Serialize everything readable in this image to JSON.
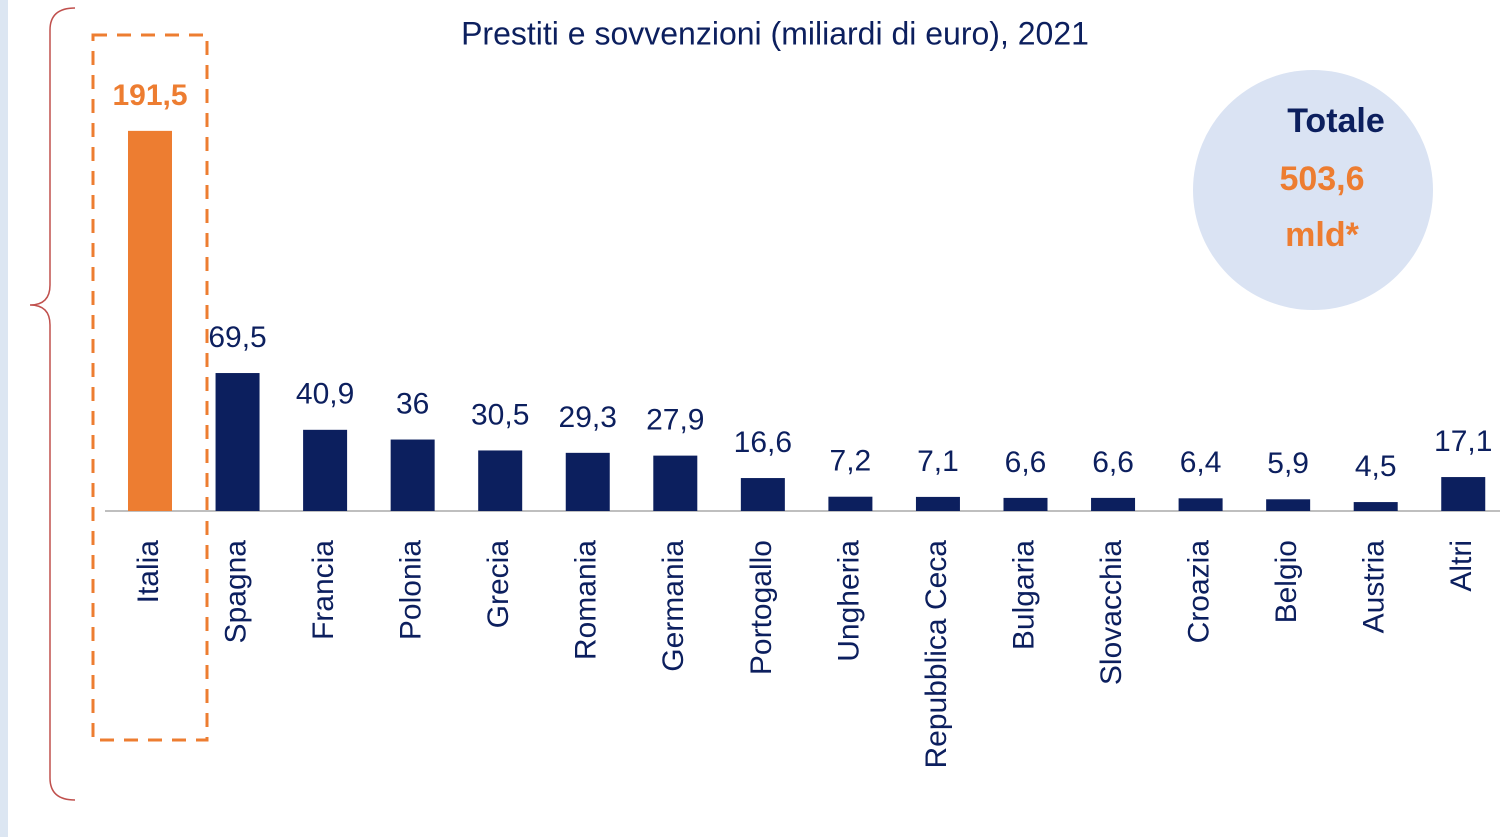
{
  "chart_data": {
    "type": "bar",
    "title": "Prestiti e sovvenzioni (miliardi di euro), 2021",
    "categories": [
      "Italia",
      "Spagna",
      "Francia",
      "Polonia",
      "Grecia",
      "Romania",
      "Germania",
      "Portogallo",
      "Ungheria",
      "Repubblica Ceca",
      "Bulgaria",
      "Slovacchia",
      "Croazia",
      "Belgio",
      "Austria",
      "Altri"
    ],
    "values": [
      191.5,
      69.5,
      40.9,
      36,
      30.5,
      29.3,
      27.9,
      16.6,
      7.2,
      7.1,
      6.6,
      6.6,
      6.4,
      5.9,
      4.5,
      17.1
    ],
    "value_labels": [
      "191,5",
      "69,5",
      "40,9",
      "36",
      "30,5",
      "29,3",
      "27,9",
      "16,6",
      "7,2",
      "7,1",
      "6,6",
      "6,6",
      "6,4",
      "5,9",
      "4,5",
      "17,1"
    ],
    "colors": [
      "#ed7d31",
      "#0c1f5e",
      "#0c1f5e",
      "#0c1f5e",
      "#0c1f5e",
      "#0c1f5e",
      "#0c1f5e",
      "#0c1f5e",
      "#0c1f5e",
      "#0c1f5e",
      "#0c1f5e",
      "#0c1f5e",
      "#0c1f5e",
      "#0c1f5e",
      "#0c1f5e",
      "#0c1f5e"
    ],
    "ylim": [
      0,
      200
    ],
    "annotation": [
      "Totale",
      "503,6",
      "mld*"
    ]
  }
}
